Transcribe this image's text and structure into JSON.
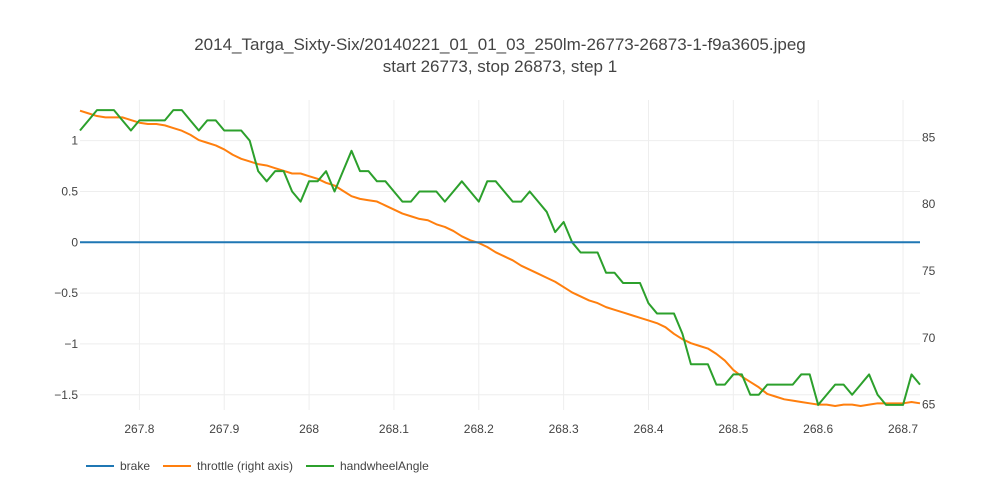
{
  "chart_data": {
    "type": "line",
    "title": "2014_Targa_Sixty-Six/20140221_01_01_03_250lm-26773-26873-1-f9a3605.jpeg",
    "subtitle": "start 26773, stop 26873, step 1",
    "xlim": [
      267.73,
      268.72
    ],
    "ylim_left": [
      -1.65,
      1.4
    ],
    "ylim_right": [
      64.6,
      87.8
    ],
    "x_ticks": [
      267.8,
      267.9,
      268,
      268.1,
      268.2,
      268.3,
      268.4,
      268.5,
      268.6,
      268.7
    ],
    "x_tick_labels": [
      "267.8",
      "267.9",
      "268",
      "268.1",
      "268.2",
      "268.3",
      "268.4",
      "268.5",
      "268.6",
      "268.7"
    ],
    "y_left_ticks": [
      1,
      0.5,
      0,
      -0.5,
      -1,
      -1.5
    ],
    "y_left_tick_labels": [
      "1",
      "0.5",
      "0",
      "−0.5",
      "−1",
      "−1.5"
    ],
    "y_right_ticks": [
      85,
      80,
      75,
      70,
      65
    ],
    "y_right_tick_labels": [
      "85",
      "80",
      "75",
      "70",
      "65"
    ],
    "legend_placement": "bottom-left",
    "grid": true,
    "series": [
      {
        "name": "brake",
        "color": "#1f77b4",
        "axis": "left",
        "x": [
          267.73,
          268.72
        ],
        "y": [
          0,
          0
        ]
      },
      {
        "name": "throttle (right axis)",
        "color": "#ff7f0e",
        "axis": "right",
        "x": [
          267.73,
          267.74,
          267.75,
          267.76,
          267.77,
          267.78,
          267.79,
          267.8,
          267.81,
          267.82,
          267.83,
          267.84,
          267.85,
          267.86,
          267.87,
          267.88,
          267.89,
          267.9,
          267.91,
          267.92,
          267.93,
          267.94,
          267.95,
          267.96,
          267.97,
          267.98,
          267.99,
          268.0,
          268.01,
          268.02,
          268.03,
          268.04,
          268.05,
          268.06,
          268.07,
          268.08,
          268.09,
          268.1,
          268.11,
          268.12,
          268.13,
          268.14,
          268.15,
          268.16,
          268.17,
          268.18,
          268.19,
          268.2,
          268.21,
          268.22,
          268.23,
          268.24,
          268.25,
          268.26,
          268.27,
          268.28,
          268.29,
          268.3,
          268.31,
          268.32,
          268.33,
          268.34,
          268.35,
          268.36,
          268.37,
          268.38,
          268.39,
          268.4,
          268.41,
          268.42,
          268.43,
          268.44,
          268.45,
          268.46,
          268.47,
          268.48,
          268.49,
          268.5,
          268.51,
          268.52,
          268.53,
          268.54,
          268.55,
          268.56,
          268.57,
          268.58,
          268.59,
          268.6,
          268.61,
          268.62,
          268.63,
          268.64,
          268.65,
          268.66,
          268.67,
          268.68,
          268.69,
          268.7,
          268.71,
          268.72
        ],
        "y": [
          87.0,
          86.8,
          86.6,
          86.5,
          86.5,
          86.5,
          86.3,
          86.1,
          86.0,
          86.0,
          85.9,
          85.7,
          85.5,
          85.2,
          84.8,
          84.6,
          84.4,
          84.1,
          83.7,
          83.4,
          83.2,
          83.0,
          82.9,
          82.7,
          82.5,
          82.3,
          82.3,
          82.1,
          81.9,
          81.6,
          81.4,
          81.0,
          80.6,
          80.4,
          80.3,
          80.2,
          79.9,
          79.6,
          79.3,
          79.1,
          78.9,
          78.8,
          78.5,
          78.3,
          78.0,
          77.6,
          77.3,
          77.1,
          76.8,
          76.4,
          76.1,
          75.8,
          75.4,
          75.1,
          74.8,
          74.5,
          74.2,
          73.8,
          73.4,
          73.1,
          72.8,
          72.6,
          72.3,
          72.1,
          71.9,
          71.7,
          71.5,
          71.3,
          71.1,
          70.8,
          70.3,
          69.9,
          69.6,
          69.4,
          69.2,
          68.8,
          68.3,
          67.6,
          67.1,
          66.7,
          66.3,
          65.8,
          65.6,
          65.4,
          65.3,
          65.2,
          65.1,
          65.0,
          65.0,
          64.9,
          65.0,
          65.0,
          64.9,
          65.0,
          65.1,
          65.1,
          65.1,
          65.1,
          65.2,
          65.1
        ]
      },
      {
        "name": "handwheelAngle",
        "color": "#2ca02c",
        "axis": "left",
        "x": [
          267.73,
          267.74,
          267.75,
          267.76,
          267.77,
          267.78,
          267.79,
          267.8,
          267.81,
          267.82,
          267.83,
          267.84,
          267.85,
          267.86,
          267.87,
          267.88,
          267.89,
          267.9,
          267.91,
          267.92,
          267.93,
          267.94,
          267.95,
          267.96,
          267.97,
          267.98,
          267.99,
          268.0,
          268.01,
          268.02,
          268.03,
          268.04,
          268.05,
          268.06,
          268.07,
          268.08,
          268.09,
          268.1,
          268.11,
          268.12,
          268.13,
          268.14,
          268.15,
          268.16,
          268.17,
          268.18,
          268.19,
          268.2,
          268.21,
          268.22,
          268.23,
          268.24,
          268.25,
          268.26,
          268.27,
          268.28,
          268.29,
          268.3,
          268.31,
          268.32,
          268.33,
          268.34,
          268.35,
          268.36,
          268.37,
          268.38,
          268.39,
          268.4,
          268.41,
          268.42,
          268.43,
          268.44,
          268.45,
          268.46,
          268.47,
          268.48,
          268.49,
          268.5,
          268.51,
          268.52,
          268.53,
          268.54,
          268.55,
          268.56,
          268.57,
          268.58,
          268.59,
          268.6,
          268.61,
          268.62,
          268.63,
          268.64,
          268.65,
          268.66,
          268.67,
          268.68,
          268.69,
          268.7,
          268.71,
          268.72
        ],
        "y": [
          1.1,
          1.2,
          1.3,
          1.3,
          1.3,
          1.2,
          1.1,
          1.2,
          1.2,
          1.2,
          1.2,
          1.3,
          1.3,
          1.2,
          1.1,
          1.2,
          1.2,
          1.1,
          1.1,
          1.1,
          1.0,
          0.7,
          0.6,
          0.7,
          0.7,
          0.5,
          0.4,
          0.6,
          0.6,
          0.7,
          0.5,
          0.7,
          0.9,
          0.7,
          0.7,
          0.6,
          0.6,
          0.5,
          0.4,
          0.4,
          0.5,
          0.5,
          0.5,
          0.4,
          0.5,
          0.6,
          0.5,
          0.4,
          0.6,
          0.6,
          0.5,
          0.4,
          0.4,
          0.5,
          0.4,
          0.3,
          0.1,
          0.2,
          0.0,
          -0.1,
          -0.1,
          -0.1,
          -0.3,
          -0.3,
          -0.4,
          -0.4,
          -0.4,
          -0.6,
          -0.7,
          -0.7,
          -0.7,
          -0.9,
          -1.2,
          -1.2,
          -1.2,
          -1.4,
          -1.4,
          -1.3,
          -1.3,
          -1.5,
          -1.5,
          -1.4,
          -1.4,
          -1.4,
          -1.4,
          -1.3,
          -1.3,
          -1.6,
          -1.5,
          -1.4,
          -1.4,
          -1.5,
          -1.4,
          -1.3,
          -1.5,
          -1.6,
          -1.6,
          -1.6,
          -1.3,
          -1.4
        ]
      }
    ]
  }
}
